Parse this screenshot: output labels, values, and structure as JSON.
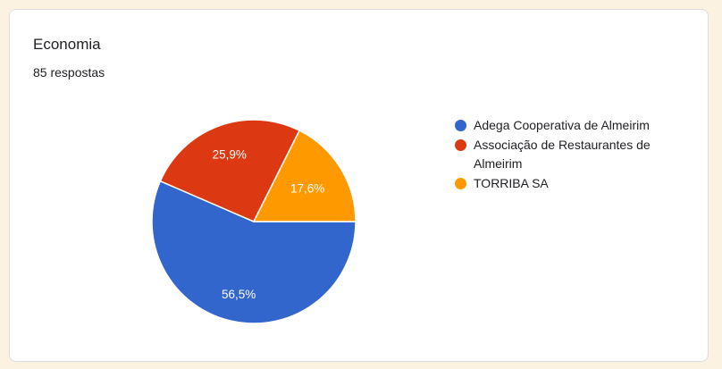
{
  "page": {
    "background_color": "#fbf2e1",
    "card_border_color": "#dadce0"
  },
  "chart_data": {
    "type": "pie",
    "title": "Economia",
    "subtitle": "85 respostas",
    "total_responses": 85,
    "legend_position": "right",
    "label_color": "#ffffff",
    "slices": [
      {
        "label": "Adega Cooperativa de Almeirim",
        "percent": 56.5,
        "percent_label": "56,5%",
        "color": "#3366cc"
      },
      {
        "label": "Associação de Restaurantes de Almeirim",
        "percent": 25.9,
        "percent_label": "25,9%",
        "color": "#dc3912"
      },
      {
        "label": "TORRIBA SA",
        "percent": 17.6,
        "percent_label": "17,6%",
        "color": "#ff9900"
      }
    ]
  }
}
